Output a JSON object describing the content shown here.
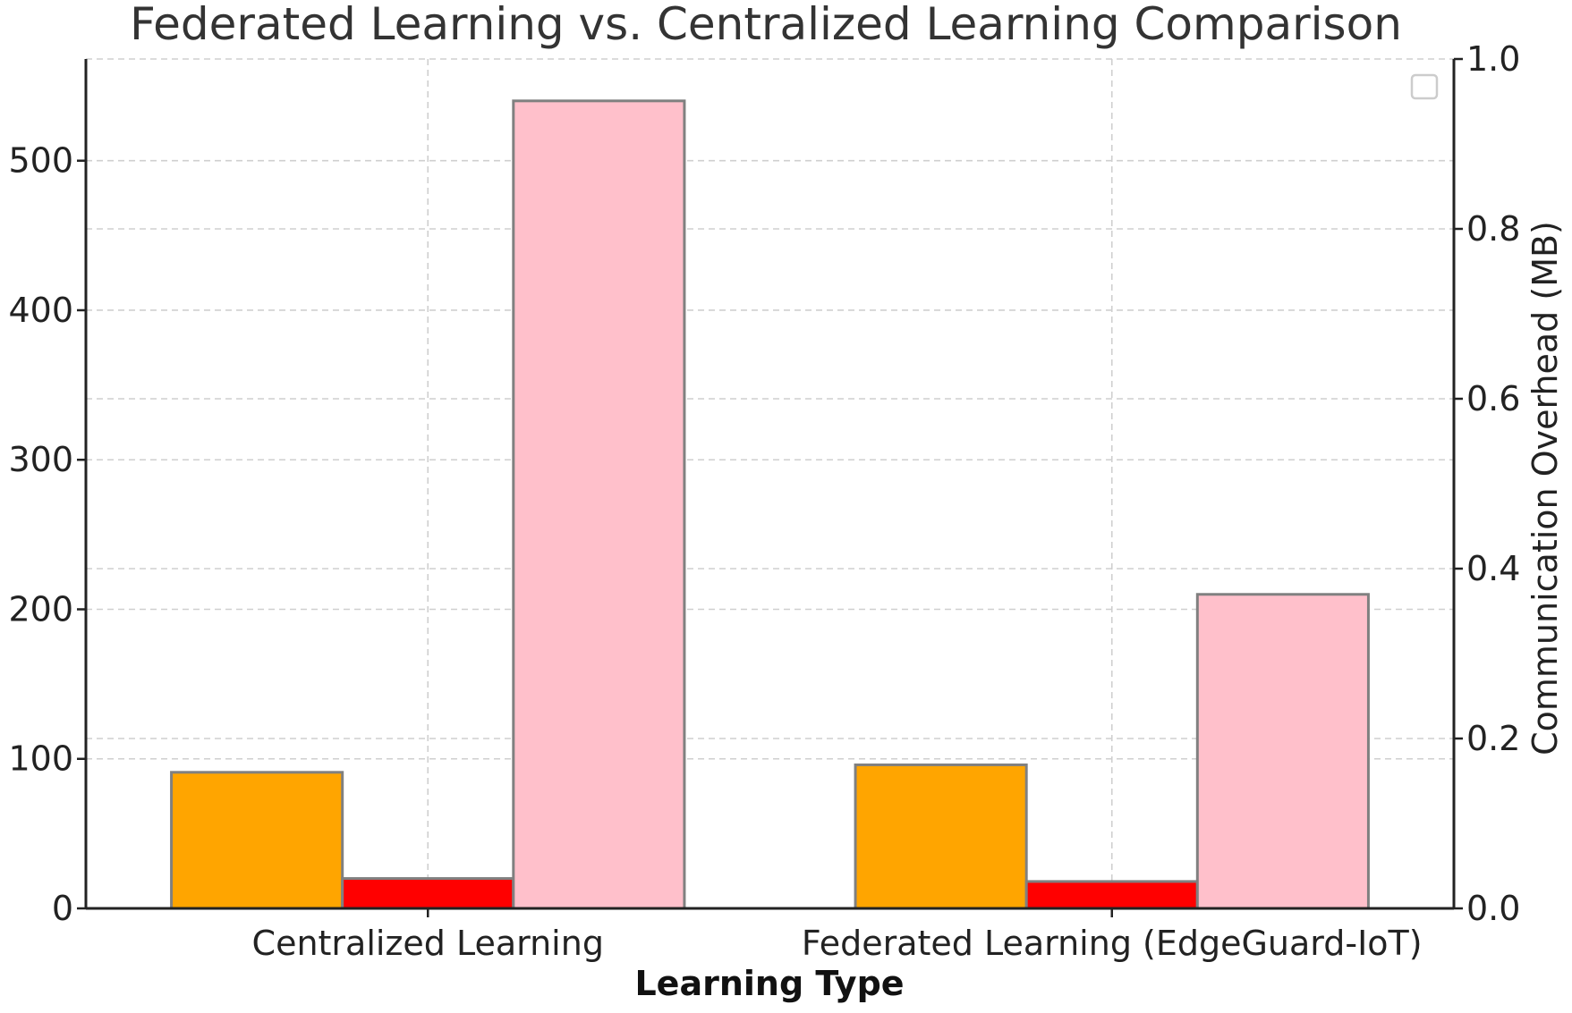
{
  "chart_data": {
    "type": "bar",
    "title": "Federated Learning vs. Centralized Learning Comparison",
    "xlabel": "Learning Type",
    "ylabel": "",
    "ylabel_right": "Communication Overhead (MB)",
    "categories": [
      "Centralized Learning",
      "Federated Learning (EdgeGuard-IoT)"
    ],
    "series": [
      {
        "color": "#FFA500",
        "values": [
          91,
          96
        ]
      },
      {
        "color": "#FF0000",
        "values": [
          20,
          18
        ]
      },
      {
        "color": "#FFC0CB",
        "values": [
          540,
          210
        ]
      }
    ],
    "ylim": [
      0,
      568
    ],
    "yticks": [
      0,
      100,
      200,
      300,
      400,
      500
    ],
    "ylim_right": [
      0,
      1.0
    ],
    "yticks_right": [
      "0.0",
      "0.2",
      "0.4",
      "0.6",
      "0.8",
      "1.0"
    ],
    "grid": true,
    "legend": {
      "placement": "top-right",
      "entries": []
    }
  }
}
